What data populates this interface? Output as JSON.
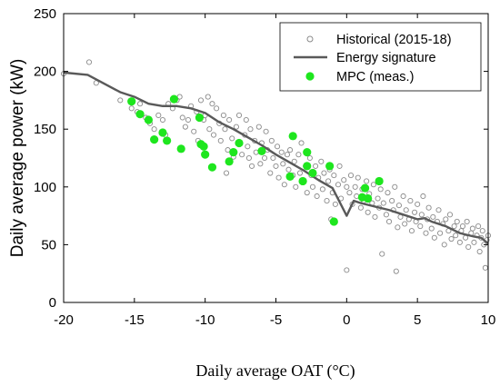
{
  "chart_data": {
    "type": "scatter",
    "xlabel": "Daily average OAT (°C)",
    "ylabel": "Daily average power (kW)",
    "xlim": [
      -20,
      10
    ],
    "ylim": [
      0,
      250
    ],
    "x_ticks": [
      -20,
      -15,
      -10,
      -5,
      0,
      5,
      10
    ],
    "y_ticks": [
      0,
      50,
      100,
      150,
      200,
      250
    ],
    "x_tick_labels": [
      "-20",
      "-15",
      "-10",
      "-5",
      "0",
      "5",
      "10"
    ],
    "y_tick_labels": [
      "0",
      "50",
      "100",
      "150",
      "200",
      "250"
    ],
    "grid": false,
    "legend_position": "top-right",
    "series": [
      {
        "name": "Historical (2015-18)",
        "kind": "scatter",
        "marker": "open-circle",
        "color": "#8a8a8a",
        "points": [
          [
            -20.0,
            198
          ],
          [
            -18.2,
            208
          ],
          [
            -17.7,
            190
          ],
          [
            -16.0,
            175
          ],
          [
            -15.2,
            168
          ],
          [
            -14.8,
            165
          ],
          [
            -14.6,
            172
          ],
          [
            -14.2,
            160
          ],
          [
            -13.9,
            155
          ],
          [
            -13.6,
            150
          ],
          [
            -13.3,
            162
          ],
          [
            -13.0,
            158
          ],
          [
            -12.8,
            145
          ],
          [
            -12.6,
            172
          ],
          [
            -12.3,
            168
          ],
          [
            -12.0,
            175
          ],
          [
            -11.8,
            178
          ],
          [
            -11.6,
            160
          ],
          [
            -11.4,
            152
          ],
          [
            -11.2,
            158
          ],
          [
            -11.0,
            170
          ],
          [
            -10.8,
            148
          ],
          [
            -10.6,
            165
          ],
          [
            -10.5,
            140
          ],
          [
            -10.3,
            175
          ],
          [
            -10.1,
            158
          ],
          [
            -10.0,
            162
          ],
          [
            -9.8,
            178
          ],
          [
            -9.7,
            150
          ],
          [
            -9.5,
            172
          ],
          [
            -9.4,
            145
          ],
          [
            -9.2,
            168
          ],
          [
            -9.0,
            155
          ],
          [
            -8.9,
            140
          ],
          [
            -8.7,
            162
          ],
          [
            -8.6,
            150
          ],
          [
            -8.4,
            132
          ],
          [
            -8.3,
            158
          ],
          [
            -8.1,
            142
          ],
          [
            -8.0,
            126
          ],
          [
            -7.8,
            152
          ],
          [
            -7.7,
            138
          ],
          [
            -7.6,
            162
          ],
          [
            -7.4,
            128
          ],
          [
            -7.2,
            145
          ],
          [
            -7.1,
            158
          ],
          [
            -7.0,
            135
          ],
          [
            -6.8,
            150
          ],
          [
            -6.7,
            118
          ],
          [
            -6.5,
            140
          ],
          [
            -6.4,
            130
          ],
          [
            -6.2,
            152
          ],
          [
            -6.1,
            120
          ],
          [
            -6.0,
            138
          ],
          [
            -5.8,
            125
          ],
          [
            -5.7,
            148
          ],
          [
            -5.6,
            132
          ],
          [
            -5.4,
            112
          ],
          [
            -5.3,
            140
          ],
          [
            -5.2,
            125
          ],
          [
            -5.0,
            118
          ],
          [
            -4.9,
            135
          ],
          [
            -4.8,
            108
          ],
          [
            -4.6,
            130
          ],
          [
            -4.5,
            120
          ],
          [
            -4.4,
            102
          ],
          [
            -4.2,
            128
          ],
          [
            -4.1,
            115
          ],
          [
            -4.0,
            132
          ],
          [
            -3.8,
            110
          ],
          [
            -3.7,
            122
          ],
          [
            -3.6,
            100
          ],
          [
            -3.4,
            128
          ],
          [
            -3.3,
            112
          ],
          [
            -3.2,
            138
          ],
          [
            -3.0,
            105
          ],
          [
            -2.9,
            118
          ],
          [
            -2.8,
            95
          ],
          [
            -2.6,
            125
          ],
          [
            -2.5,
            110
          ],
          [
            -2.4,
            100
          ],
          [
            -2.2,
            118
          ],
          [
            -2.1,
            92
          ],
          [
            -2.0,
            108
          ],
          [
            -1.8,
            122
          ],
          [
            -1.7,
            98
          ],
          [
            -1.6,
            112
          ],
          [
            -1.4,
            88
          ],
          [
            -1.3,
            105
          ],
          [
            -1.2,
            115
          ],
          [
            -1.0,
            95
          ],
          [
            -0.9,
            110
          ],
          [
            -0.8,
            85
          ],
          [
            -0.6,
            102
          ],
          [
            -0.5,
            118
          ],
          [
            -0.4,
            90
          ],
          [
            -0.2,
            106
          ],
          [
            0.0,
            100
          ],
          [
            0.0,
            28
          ],
          [
            0.2,
            95
          ],
          [
            0.3,
            110
          ],
          [
            0.4,
            85
          ],
          [
            0.6,
            100
          ],
          [
            0.7,
            92
          ],
          [
            0.8,
            108
          ],
          [
            1.0,
            82
          ],
          [
            1.1,
            98
          ],
          [
            1.2,
            88
          ],
          [
            1.4,
            105
          ],
          [
            1.5,
            78
          ],
          [
            1.6,
            94
          ],
          [
            1.8,
            86
          ],
          [
            1.9,
            102
          ],
          [
            2.0,
            74
          ],
          [
            2.2,
            90
          ],
          [
            2.3,
            82
          ],
          [
            2.4,
            98
          ],
          [
            2.5,
            42
          ],
          [
            2.6,
            86
          ],
          [
            2.8,
            76
          ],
          [
            2.9,
            95
          ],
          [
            3.0,
            70
          ],
          [
            3.2,
            88
          ],
          [
            3.3,
            80
          ],
          [
            3.4,
            100
          ],
          [
            3.6,
            65
          ],
          [
            3.7,
            84
          ],
          [
            3.8,
            74
          ],
          [
            4.0,
            92
          ],
          [
            4.1,
            68
          ],
          [
            4.2,
            80
          ],
          [
            4.4,
            72
          ],
          [
            4.5,
            88
          ],
          [
            4.6,
            62
          ],
          [
            4.8,
            78
          ],
          [
            4.9,
            70
          ],
          [
            5.0,
            85
          ],
          [
            5.2,
            66
          ],
          [
            5.3,
            76
          ],
          [
            5.4,
            92
          ],
          [
            5.6,
            60
          ],
          [
            5.7,
            72
          ],
          [
            5.8,
            82
          ],
          [
            6.0,
            64
          ],
          [
            6.1,
            74
          ],
          [
            6.2,
            56
          ],
          [
            6.4,
            70
          ],
          [
            6.5,
            80
          ],
          [
            6.6,
            60
          ],
          [
            6.8,
            68
          ],
          [
            6.9,
            50
          ],
          [
            7.0,
            72
          ],
          [
            7.2,
            62
          ],
          [
            7.3,
            76
          ],
          [
            7.4,
            55
          ],
          [
            7.6,
            66
          ],
          [
            7.7,
            58
          ],
          [
            7.8,
            70
          ],
          [
            8.0,
            52
          ],
          [
            8.1,
            62
          ],
          [
            8.2,
            66
          ],
          [
            8.4,
            56
          ],
          [
            8.5,
            70
          ],
          [
            8.6,
            48
          ],
          [
            8.8,
            60
          ],
          [
            8.9,
            64
          ],
          [
            9.0,
            52
          ],
          [
            9.2,
            58
          ],
          [
            9.3,
            66
          ],
          [
            9.4,
            44
          ],
          [
            9.5,
            56
          ],
          [
            9.6,
            62
          ],
          [
            9.7,
            50
          ],
          [
            9.8,
            30
          ],
          [
            9.9,
            54
          ],
          [
            10.0,
            58
          ],
          [
            3.5,
            27
          ],
          [
            -8.5,
            112
          ],
          [
            -6.9,
            125
          ],
          [
            -1.1,
            72
          ]
        ]
      },
      {
        "name": "Energy signature",
        "kind": "line",
        "color": "#595959",
        "points": [
          [
            -20.0,
            199
          ],
          [
            -18.3,
            197
          ],
          [
            -16.0,
            182
          ],
          [
            -15.0,
            178
          ],
          [
            -14.0,
            172
          ],
          [
            -13.0,
            170
          ],
          [
            -12.0,
            170
          ],
          [
            -11.0,
            168
          ],
          [
            -10.0,
            164
          ],
          [
            -9.0,
            156
          ],
          [
            -8.0,
            150
          ],
          [
            -7.0,
            143
          ],
          [
            -6.0,
            136
          ],
          [
            -5.0,
            128
          ],
          [
            -4.0,
            121
          ],
          [
            -3.0,
            114
          ],
          [
            -2.5,
            110
          ],
          [
            -2.0,
            106
          ],
          [
            -1.0,
            99
          ],
          [
            0.0,
            75
          ],
          [
            0.5,
            88
          ],
          [
            1.0,
            86
          ],
          [
            2.0,
            83
          ],
          [
            3.0,
            80
          ],
          [
            4.0,
            76
          ],
          [
            5.0,
            72
          ],
          [
            5.5,
            73
          ],
          [
            6.0,
            70
          ],
          [
            7.0,
            66
          ],
          [
            8.0,
            60
          ],
          [
            9.0,
            57
          ],
          [
            9.5,
            56
          ],
          [
            10.0,
            51
          ]
        ]
      },
      {
        "name": "MPC (meas.)",
        "kind": "scatter",
        "marker": "filled-circle",
        "color": "#1ee61e",
        "points": [
          [
            -15.2,
            174
          ],
          [
            -14.6,
            163
          ],
          [
            -14.0,
            158
          ],
          [
            -13.6,
            141
          ],
          [
            -13.0,
            147
          ],
          [
            -12.7,
            140
          ],
          [
            -12.2,
            176
          ],
          [
            -11.7,
            133
          ],
          [
            -10.4,
            160
          ],
          [
            -10.3,
            137
          ],
          [
            -10.0,
            128
          ],
          [
            -10.1,
            135
          ],
          [
            -9.5,
            117
          ],
          [
            -8.3,
            122
          ],
          [
            -8.0,
            130
          ],
          [
            -7.6,
            138
          ],
          [
            -6.0,
            131
          ],
          [
            -4.0,
            109
          ],
          [
            -3.8,
            144
          ],
          [
            -3.1,
            105
          ],
          [
            -2.8,
            130
          ],
          [
            -2.4,
            112
          ],
          [
            -2.8,
            118
          ],
          [
            -1.2,
            118
          ],
          [
            -0.9,
            70
          ],
          [
            1.1,
            91
          ],
          [
            1.3,
            99
          ],
          [
            1.5,
            90
          ],
          [
            2.3,
            105
          ]
        ]
      }
    ]
  }
}
